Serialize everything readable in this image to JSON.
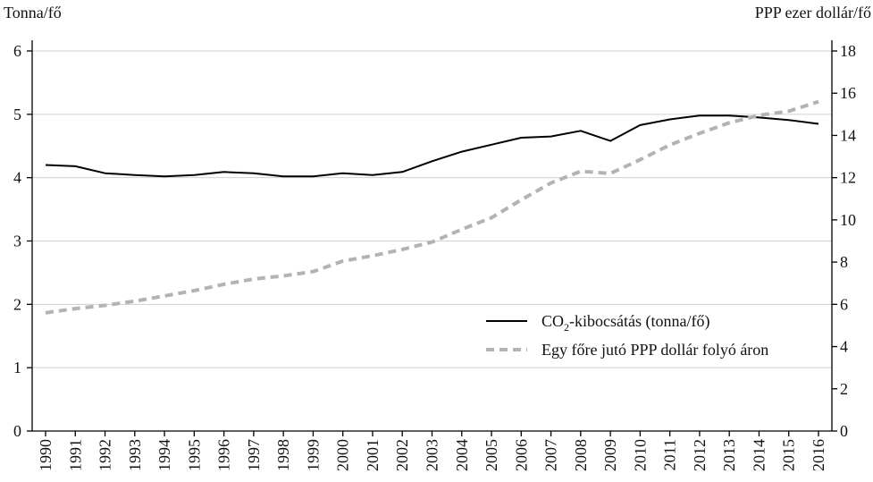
{
  "chart_data": {
    "type": "line",
    "y_left_label": "Tonna/fő",
    "y_right_label": "PPP ezer dollár/fő",
    "y_left_lim": [
      0,
      6
    ],
    "y_right_lim": [
      0,
      18
    ],
    "y_left_ticks": [
      "0",
      "1",
      "2",
      "3",
      "4",
      "5",
      "6"
    ],
    "y_right_ticks": [
      "0",
      "2",
      "4",
      "6",
      "8",
      "10",
      "12",
      "14",
      "16",
      "18"
    ],
    "grid": "horizontal",
    "legend_position": "right",
    "x": [
      "1990",
      "1991",
      "1992",
      "1993",
      "1994",
      "1995",
      "1996",
      "1997",
      "1998",
      "1999",
      "2000",
      "2001",
      "2002",
      "2003",
      "2004",
      "2005",
      "2006",
      "2007",
      "2008",
      "2009",
      "2010",
      "2011",
      "2012",
      "2013",
      "2014",
      "2015",
      "2016"
    ],
    "series": [
      {
        "name_main": "CO",
        "name_sub": "2",
        "name_rest": "-kibocsátás (tonna/fő)",
        "axis": "left",
        "color": "#000000",
        "style": "solid",
        "values": [
          4.2,
          4.18,
          4.07,
          4.04,
          4.02,
          4.04,
          4.09,
          4.07,
          4.02,
          4.02,
          4.07,
          4.04,
          4.09,
          4.26,
          4.41,
          4.52,
          4.63,
          4.65,
          4.74,
          4.58,
          4.83,
          4.92,
          4.98,
          4.98,
          4.95,
          4.91,
          4.85
        ]
      },
      {
        "name": "Egy főre jutó PPP dollár folyó áron",
        "axis": "right",
        "color": "#b3b3b3",
        "style": "dashed",
        "values": [
          5.6,
          5.8,
          5.95,
          6.15,
          6.4,
          6.65,
          6.95,
          7.2,
          7.35,
          7.55,
          8.05,
          8.3,
          8.6,
          8.95,
          9.55,
          10.1,
          10.95,
          11.75,
          12.3,
          12.2,
          12.85,
          13.55,
          14.1,
          14.6,
          14.95,
          15.15,
          15.6
        ]
      }
    ]
  }
}
